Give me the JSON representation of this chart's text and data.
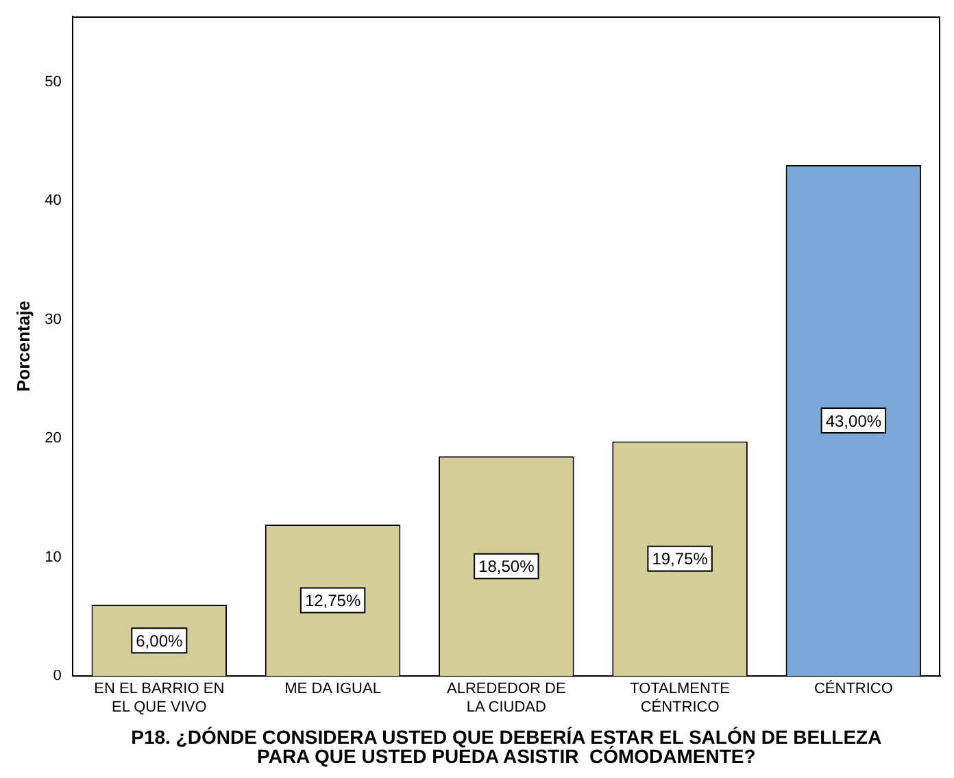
{
  "chart_data": {
    "type": "bar",
    "xlabel": "P18. ¿DÓNDE CONSIDERA USTED QUE DEBERÍA ESTAR EL SALÓN DE BELLEZA PARA QUE USTED PUEDA ASISTIR  CÓMODAMENTE?",
    "ylabel": "Porcentaje",
    "categories": [
      "EN EL BARRIO EN EL QUE VIVO",
      "ME DA IGUAL",
      "ALREDEDOR DE LA CIUDAD",
      "TOTALMENTE CÉNTRICO",
      "CÉNTRICO"
    ],
    "values": [
      6,
      12.75,
      18.5,
      19.75,
      43
    ],
    "colors": [
      "#d3ce97",
      "#d3ce97",
      "#d3ce97",
      "#d3ce97",
      "#7ba7d6"
    ],
    "value_labels": [
      "6,00%",
      "12,75%",
      "18,50%",
      "19,75%",
      "43,00%"
    ],
    "ylim": [
      0,
      55.5
    ],
    "yticks": [
      0,
      10,
      20,
      30,
      40,
      50
    ],
    "grid": false,
    "legend": false
  }
}
